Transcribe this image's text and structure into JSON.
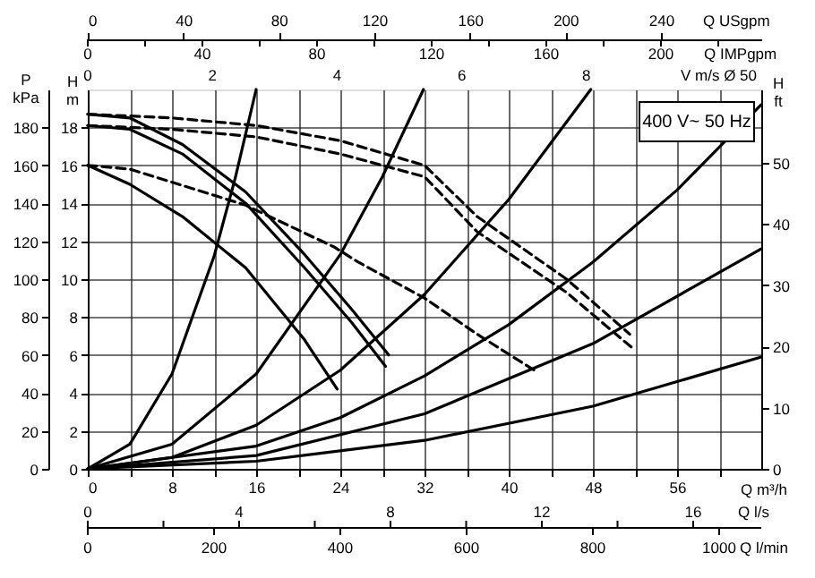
{
  "chart_data": {
    "type": "line",
    "annotations": [
      "400 V~ 50 Hz",
      "Q IMPgpm",
      "0",
      "40",
      "80",
      "120",
      "160",
      "200",
      "V m/s Ø 50",
      "0",
      "2",
      "4",
      "6",
      "8",
      "Q l/s",
      "0",
      "4",
      "8",
      "12",
      "16",
      "Q l/min",
      "0",
      "200",
      "400",
      "600",
      "800",
      "1000"
    ],
    "xlabel": "Q m³/h",
    "ylabel": "H m",
    "y2label": "P kPa",
    "y3label": "H ft",
    "x2label": "Q USgpm",
    "xlim": [
      0,
      64
    ],
    "xticks": [
      0,
      {
        "value": 4,
        "label": null
      },
      8,
      {
        "value": 12,
        "label": null
      },
      16,
      {
        "value": 20,
        "label": null
      },
      24,
      {
        "value": 28,
        "label": null
      },
      32,
      {
        "value": 36,
        "label": null
      },
      40,
      {
        "value": 44,
        "label": null
      },
      48,
      {
        "value": 52,
        "label": null
      },
      56,
      {
        "value": 60,
        "label": null
      }
    ],
    "ylim": [
      0,
      20
    ],
    "yticks": [
      0,
      2,
      4,
      6,
      8,
      10,
      12,
      14,
      16,
      18
    ],
    "y2lim": [
      0,
      200
    ],
    "y2ticks": [
      0,
      20,
      40,
      60,
      80,
      100,
      120,
      140,
      160,
      180
    ],
    "y3lim": [
      0,
      62
    ],
    "y3ticks": [
      0,
      10,
      20,
      30,
      40,
      50
    ],
    "x2lim": [
      0,
      282
    ],
    "x2ticks": [
      0,
      40,
      80,
      120,
      160,
      200,
      240
    ],
    "grid": true,
    "series": [
      {
        "color": "#000000",
        "x": [
          0,
          4,
          9,
          15,
          20.6,
          25.1,
          28.6
        ],
        "values": [
          18.7,
          18.5,
          17.1,
          14.6,
          11.3,
          8.4,
          6.0
        ]
      },
      {
        "color": "#000000",
        "x": [
          0,
          4,
          9,
          15,
          20.6,
          25.1,
          28.3
        ],
        "values": [
          18.1,
          17.9,
          16.6,
          14.0,
          10.6,
          7.7,
          5.4
        ]
      },
      {
        "color": "#000000",
        "x": [
          0,
          4,
          9,
          15,
          20.6,
          23.7
        ],
        "values": [
          16.0,
          15.0,
          13.3,
          10.6,
          6.8,
          4.2
        ]
      },
      {
        "color": "#000000",
        "line_style": "dashed",
        "x": [
          0,
          8,
          16,
          24,
          32,
          37,
          45.5,
          51.5
        ],
        "values": [
          18.7,
          18.5,
          18.1,
          17.3,
          16.0,
          13.3,
          10.0,
          7.1
        ]
      },
      {
        "color": "#000000",
        "line_style": "dashed",
        "x": [
          0,
          8,
          16,
          24,
          32,
          37,
          45.5,
          51.9
        ],
        "values": [
          18.1,
          17.9,
          17.5,
          16.6,
          15.4,
          12.5,
          9.3,
          6.3
        ]
      },
      {
        "color": "#000000",
        "line_style": "dashed",
        "x": [
          0,
          4,
          15,
          23.4,
          25.7,
          32,
          37,
          42.7
        ],
        "values": [
          16.0,
          15.8,
          13.9,
          11.7,
          10.9,
          9.0,
          7.1,
          5.1
        ]
      },
      {
        "color": "#000000",
        "x": [
          0,
          4,
          8,
          12,
          14,
          16
        ],
        "values": [
          0,
          1.3,
          5.0,
          11.2,
          15.3,
          20
        ]
      },
      {
        "color": "#000000",
        "x": [
          0,
          8,
          16,
          24,
          28,
          31.9
        ],
        "values": [
          0,
          1.3,
          5.0,
          11.3,
          15.4,
          20
        ]
      },
      {
        "color": "#000000",
        "x": [
          0,
          8,
          16,
          24,
          32,
          40,
          47.8
        ],
        "values": [
          0,
          0.6,
          2.3,
          5.2,
          9.2,
          14.2,
          20
        ]
      },
      {
        "color": "#000000",
        "x": [
          0,
          16,
          24,
          32,
          40,
          48,
          56,
          64
        ],
        "values": [
          0,
          1.2,
          2.7,
          4.9,
          7.6,
          10.9,
          14.7,
          19.2
        ]
      },
      {
        "color": "#000000",
        "x": [
          0,
          16,
          32,
          48,
          64
        ],
        "values": [
          0,
          0.7,
          2.9,
          6.6,
          11.6
        ]
      },
      {
        "color": "#000000",
        "x": [
          0,
          16,
          32,
          48,
          64
        ],
        "values": [
          0,
          0.4,
          1.5,
          3.3,
          5.9
        ]
      }
    ]
  }
}
